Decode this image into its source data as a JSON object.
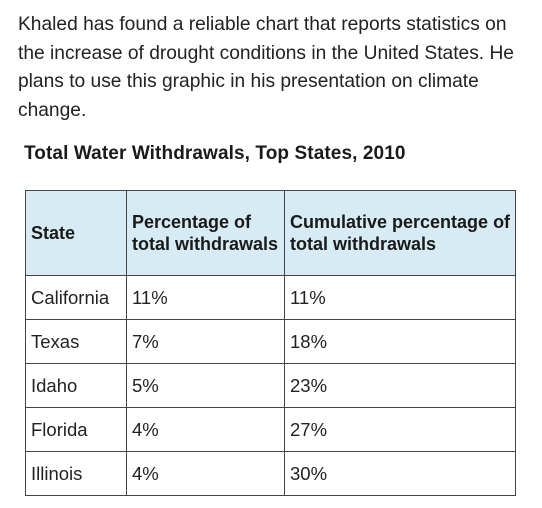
{
  "intro_text": "Khaled has found a reliable chart that reports statistics on the increase of drought conditions in the United States. He plans to use this graphic in his presentation on climate change.",
  "table": {
    "title": "Total Water Withdrawals, Top States, 2010",
    "columns": [
      "State",
      "Percentage of total withdrawals",
      "Cumulative percentage of total withdrawals"
    ],
    "rows": [
      [
        "California",
        "11%",
        "11%"
      ],
      [
        "Texas",
        "7%",
        "18%"
      ],
      [
        "Idaho",
        "5%",
        "23%"
      ],
      [
        "Florida",
        "4%",
        "27%"
      ],
      [
        "Illinois",
        "4%",
        "30%"
      ]
    ],
    "header_background": "#d6ebf3"
  }
}
